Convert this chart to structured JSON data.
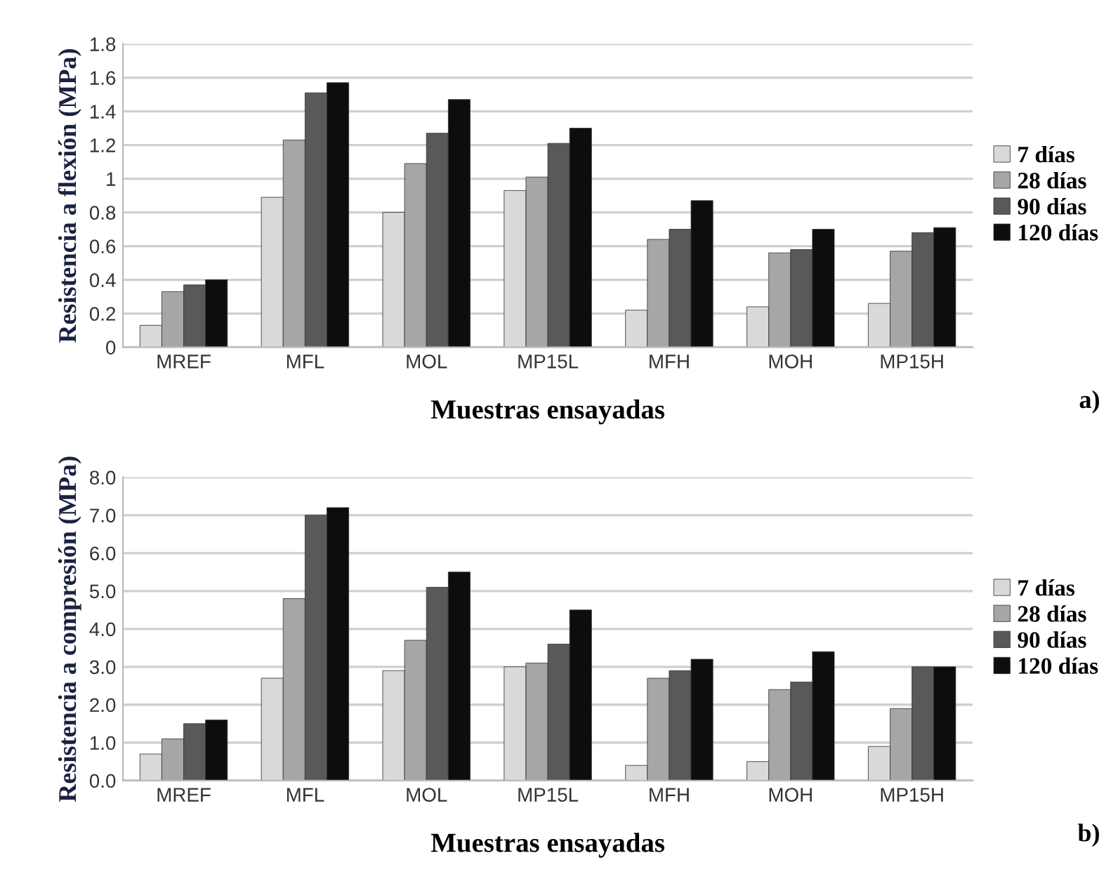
{
  "chart_data": [
    {
      "type": "bar",
      "xlabel": "Muestras ensayadas",
      "ylabel": "Resistencia a flexión (MPa)",
      "categories": [
        "MREF",
        "MFL",
        "MOL",
        "MP15L",
        "MFH",
        "MOH",
        "MP15H"
      ],
      "series": [
        {
          "name": "7 días",
          "color": "#d9d9d9",
          "values": [
            0.13,
            0.89,
            0.8,
            0.93,
            0.22,
            0.24,
            0.26
          ]
        },
        {
          "name": "28 días",
          "color": "#a6a6a6",
          "values": [
            0.33,
            1.23,
            1.09,
            1.01,
            0.64,
            0.56,
            0.57
          ]
        },
        {
          "name": "90 días",
          "color": "#595959",
          "values": [
            0.37,
            1.51,
            1.27,
            1.21,
            0.7,
            0.58,
            0.68
          ]
        },
        {
          "name": "120 días",
          "color": "#0d0d0d",
          "values": [
            0.4,
            1.57,
            1.47,
            1.3,
            0.87,
            0.7,
            0.71
          ]
        }
      ],
      "ylim": [
        0,
        1.8
      ],
      "yticks": [
        0,
        0.2,
        0.4,
        0.6,
        0.8,
        1,
        1.2,
        1.4,
        1.6,
        1.8
      ],
      "grid": "y",
      "legend": "right",
      "annotations": [
        "a)"
      ]
    },
    {
      "type": "bar",
      "xlabel": "Muestras ensayadas",
      "ylabel": "Resistencia a compresión (MPa)",
      "categories": [
        "MREF",
        "MFL",
        "MOL",
        "MP15L",
        "MFH",
        "MOH",
        "MP15H"
      ],
      "series": [
        {
          "name": "7 días",
          "color": "#d9d9d9",
          "values": [
            0.7,
            2.7,
            2.9,
            3.0,
            0.4,
            0.5,
            0.9
          ]
        },
        {
          "name": "28 días",
          "color": "#a6a6a6",
          "values": [
            1.1,
            4.8,
            3.7,
            3.1,
            2.7,
            2.4,
            1.9
          ]
        },
        {
          "name": "90 días",
          "color": "#595959",
          "values": [
            1.5,
            7.0,
            5.1,
            3.6,
            2.9,
            2.6,
            3.0
          ]
        },
        {
          "name": "120 días",
          "color": "#0d0d0d",
          "values": [
            1.6,
            7.2,
            5.5,
            4.5,
            3.2,
            3.4,
            3.0
          ]
        }
      ],
      "ylim": [
        0,
        8
      ],
      "yticks": [
        {
          "value": 0,
          "label": "0.0"
        },
        {
          "value": 1,
          "label": "1.0"
        },
        {
          "value": 2,
          "label": "2.0"
        },
        {
          "value": 3,
          "label": "3.0"
        },
        {
          "value": 4,
          "label": "4.0"
        },
        {
          "value": 5,
          "label": "5.0"
        },
        {
          "value": 6,
          "label": "6.0"
        },
        {
          "value": 7,
          "label": "7.0"
        },
        {
          "value": 8,
          "label": "8.0"
        }
      ],
      "grid": "y",
      "legend": "right",
      "annotations": [
        "b)"
      ]
    }
  ]
}
